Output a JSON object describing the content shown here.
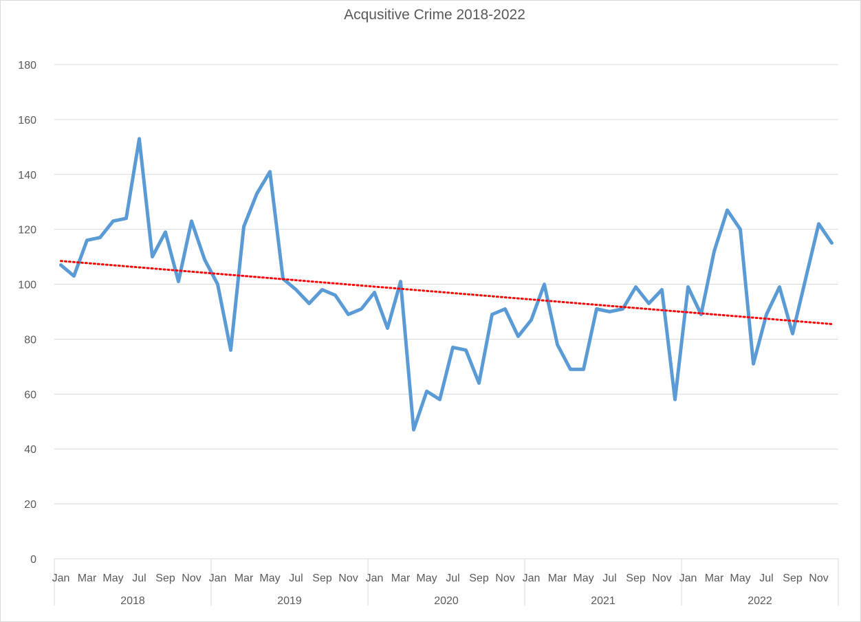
{
  "chart_data": {
    "type": "line",
    "title": "Acqusitive Crime 2018-2022",
    "xlabel": "",
    "ylabel": "",
    "ylim": [
      0,
      180
    ],
    "yticks": [
      "0",
      "20",
      "40",
      "60",
      "80",
      "100",
      "120",
      "140",
      "160",
      "180"
    ],
    "month_labels": [
      "Jan",
      "",
      "Mar",
      "",
      "May",
      "",
      "Jul",
      "",
      "Sep",
      "",
      "Nov",
      ""
    ],
    "years": [
      "2018",
      "2019",
      "2020",
      "2021",
      "2022"
    ],
    "grid": true,
    "legend": "none",
    "series": [
      {
        "color": "#5b9bd5",
        "values": [
          107,
          103,
          116,
          117,
          123,
          124,
          153,
          110,
          119,
          101,
          123,
          109,
          100,
          76,
          121,
          133,
          141,
          102,
          98,
          93,
          98,
          96,
          89,
          91,
          97,
          84,
          101,
          47,
          61,
          58,
          77,
          76,
          64,
          89,
          91,
          81,
          87,
          100,
          78,
          69,
          69,
          91,
          90,
          91,
          99,
          93,
          98,
          58,
          99,
          89,
          112,
          127,
          120,
          71,
          89,
          99,
          82,
          102,
          122,
          115
        ]
      }
    ],
    "trendline": {
      "type": "linear",
      "color": "#ff0000",
      "style": "dotted"
    }
  }
}
